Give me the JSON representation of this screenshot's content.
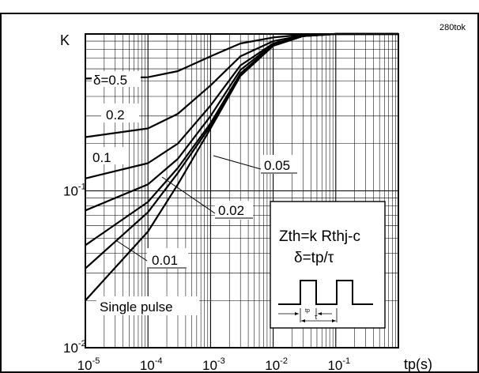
{
  "chart_data": {
    "type": "line",
    "title": "",
    "xlabel": "tp(s)",
    "ylabel": "K",
    "x_scale": "log",
    "y_scale": "log",
    "xlim": [
      1e-05,
      1
    ],
    "ylim": [
      0.01,
      1
    ],
    "x_ticks": [
      {
        "value": 1e-05,
        "base": "10",
        "exp": "-5"
      },
      {
        "value": 0.0001,
        "base": "10",
        "exp": "-4"
      },
      {
        "value": 0.001,
        "base": "10",
        "exp": "-3"
      },
      {
        "value": 0.01,
        "base": "10",
        "exp": "-2"
      },
      {
        "value": 0.1,
        "base": "10",
        "exp": "-1"
      }
    ],
    "y_ticks": [
      {
        "value": 0.01,
        "base": "10",
        "exp": "-2"
      },
      {
        "value": 0.1,
        "base": "10",
        "exp": "-1"
      }
    ],
    "grid": true,
    "figure_code": "280tok",
    "series": [
      {
        "name": "δ=0.5",
        "x": [
          1e-05,
          0.0001,
          0.0003,
          0.001,
          0.003,
          0.01,
          0.03,
          0.1,
          1
        ],
        "y": [
          0.52,
          0.53,
          0.58,
          0.72,
          0.87,
          0.95,
          0.99,
          1.0,
          1.0
        ]
      },
      {
        "name": "0.2",
        "x": [
          1e-05,
          0.0001,
          0.0003,
          0.001,
          0.003,
          0.01,
          0.03,
          0.1,
          1
        ],
        "y": [
          0.22,
          0.25,
          0.31,
          0.47,
          0.72,
          0.9,
          0.98,
          1.0,
          1.0
        ]
      },
      {
        "name": "0.1",
        "x": [
          1e-05,
          0.0001,
          0.0003,
          0.001,
          0.003,
          0.01,
          0.03,
          0.1,
          1
        ],
        "y": [
          0.12,
          0.15,
          0.2,
          0.35,
          0.63,
          0.87,
          0.97,
          1.0,
          1.0
        ]
      },
      {
        "name": "0.05",
        "x": [
          1e-05,
          0.0001,
          0.0003,
          0.001,
          0.003,
          0.01,
          0.03,
          0.1,
          1
        ],
        "y": [
          0.075,
          0.11,
          0.16,
          0.3,
          0.59,
          0.86,
          0.97,
          1.0,
          1.0
        ]
      },
      {
        "name": "0.02",
        "x": [
          1e-05,
          0.0001,
          0.0003,
          0.001,
          0.003,
          0.01,
          0.03,
          0.1,
          1
        ],
        "y": [
          0.045,
          0.085,
          0.14,
          0.27,
          0.56,
          0.85,
          0.97,
          1.0,
          1.0
        ]
      },
      {
        "name": "0.01",
        "x": [
          1e-05,
          0.0001,
          0.0003,
          0.001,
          0.003,
          0.01,
          0.03,
          0.1,
          1
        ],
        "y": [
          0.032,
          0.073,
          0.13,
          0.26,
          0.55,
          0.84,
          0.97,
          1.0,
          1.0
        ]
      },
      {
        "name": "Single pulse",
        "x": [
          1e-05,
          0.0001,
          0.0003,
          0.001,
          0.003,
          0.01,
          0.03,
          0.1,
          1
        ],
        "y": [
          0.02,
          0.055,
          0.11,
          0.25,
          0.54,
          0.84,
          0.97,
          1.0,
          1.0
        ]
      }
    ],
    "annotations": {
      "formula_line1": "Zth=k Rthj-c",
      "formula_line2": "δ=tp/τ",
      "pulse_tp_label": "tp",
      "pulse_tau_label": "τ"
    }
  }
}
